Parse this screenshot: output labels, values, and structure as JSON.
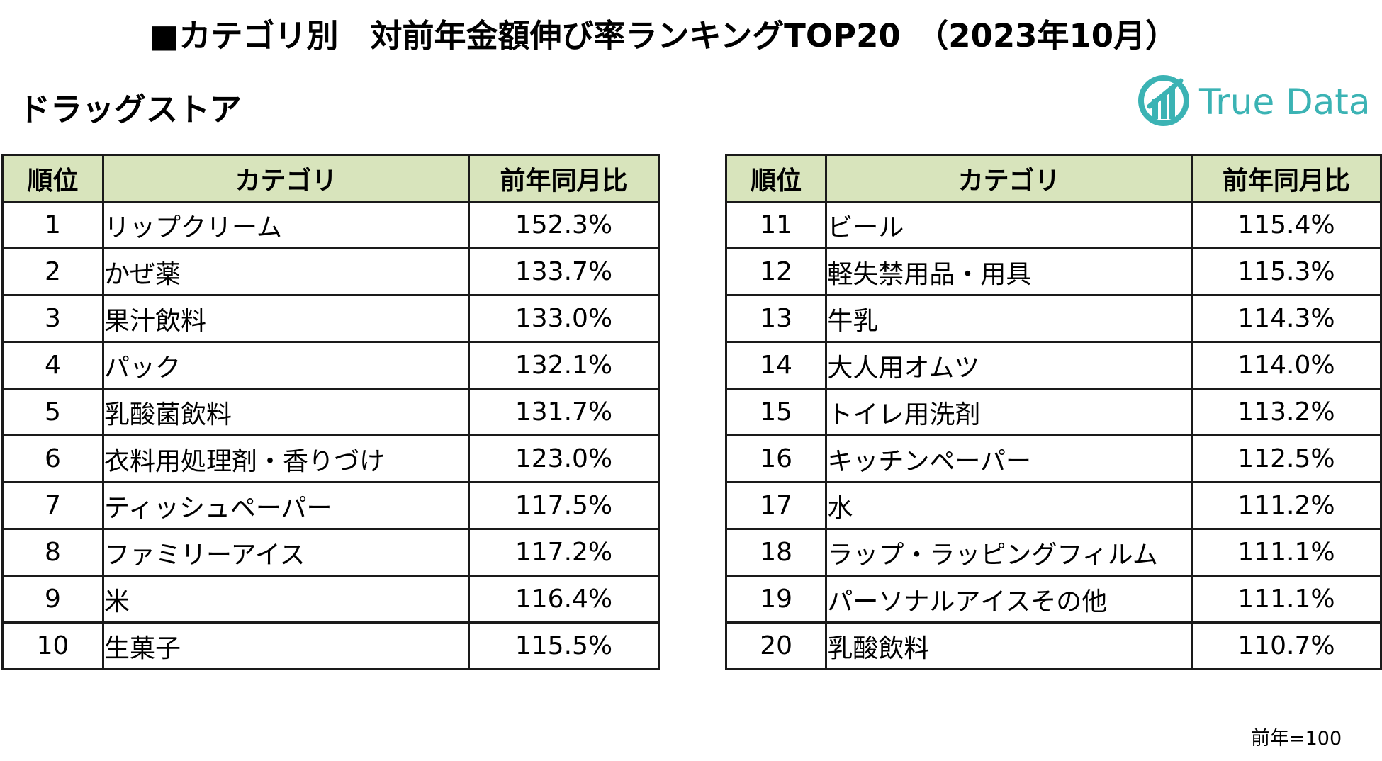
{
  "title": "■カテゴリ別　対前年金額伸び率ランキングTOP20　（2023年10月）",
  "subtitle": "ドラッグストア",
  "logo": {
    "text": "True Data",
    "color": "#3bb3b4"
  },
  "header_color": "#d8e4bc",
  "table_headers": {
    "rank": "順位",
    "category": "カテゴリ",
    "ratio": "前年同月比"
  },
  "left_rows": [
    {
      "rank": "1",
      "category": "リップクリーム",
      "ratio": "152.3%"
    },
    {
      "rank": "2",
      "category": "かぜ薬",
      "ratio": "133.7%"
    },
    {
      "rank": "3",
      "category": "果汁飲料",
      "ratio": "133.0%"
    },
    {
      "rank": "4",
      "category": "パック",
      "ratio": "132.1%"
    },
    {
      "rank": "5",
      "category": "乳酸菌飲料",
      "ratio": "131.7%"
    },
    {
      "rank": "6",
      "category": "衣料用処理剤・香りづけ",
      "ratio": "123.0%"
    },
    {
      "rank": "7",
      "category": "ティッシュペーパー",
      "ratio": "117.5%"
    },
    {
      "rank": "8",
      "category": "ファミリーアイス",
      "ratio": "117.2%"
    },
    {
      "rank": "9",
      "category": "米",
      "ratio": "116.4%"
    },
    {
      "rank": "10",
      "category": "生菓子",
      "ratio": "115.5%"
    }
  ],
  "right_rows": [
    {
      "rank": "11",
      "category": "ビール",
      "ratio": "115.4%"
    },
    {
      "rank": "12",
      "category": "軽失禁用品・用具",
      "ratio": "115.3%"
    },
    {
      "rank": "13",
      "category": "牛乳",
      "ratio": "114.3%"
    },
    {
      "rank": "14",
      "category": "大人用オムツ",
      "ratio": "114.0%"
    },
    {
      "rank": "15",
      "category": "トイレ用洗剤",
      "ratio": "113.2%"
    },
    {
      "rank": "16",
      "category": "キッチンペーパー",
      "ratio": "112.5%"
    },
    {
      "rank": "17",
      "category": "水",
      "ratio": "111.2%"
    },
    {
      "rank": "18",
      "category": "ラップ・ラッピングフィルム",
      "ratio": "111.1%"
    },
    {
      "rank": "19",
      "category": "パーソナルアイスその他",
      "ratio": "111.1%"
    },
    {
      "rank": "20",
      "category": "乳酸飲料",
      "ratio": "110.7%"
    }
  ],
  "footnote": "前年=100"
}
